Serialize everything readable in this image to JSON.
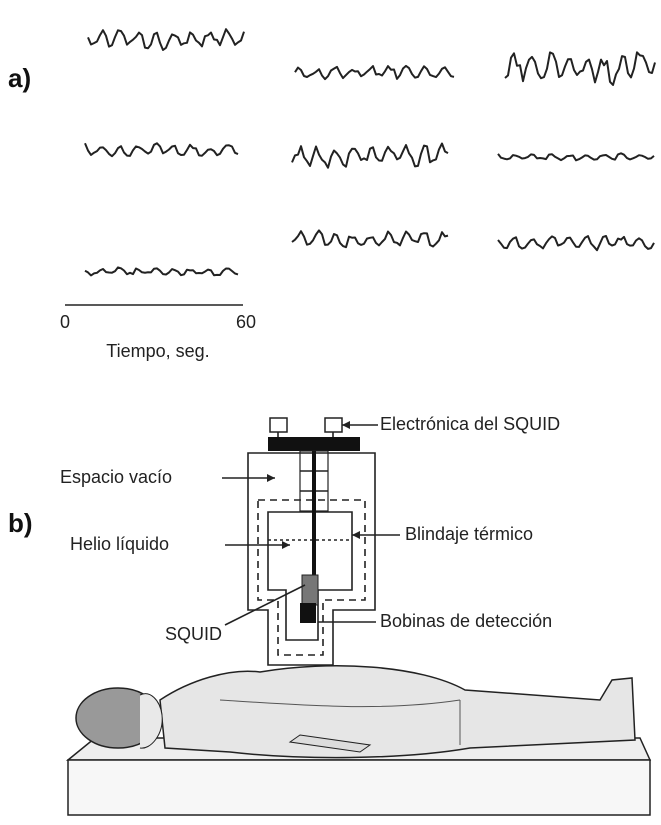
{
  "panel_a": {
    "label": "a)",
    "time_axis": {
      "start": 0,
      "end": 60,
      "label": "Tiempo, seg."
    }
  },
  "panel_b": {
    "label": "b)",
    "labels": {
      "electronics": "Electrónica del SQUID",
      "vacuum": "Espacio vacío",
      "shield": "Blindaje térmico",
      "helium": "Helio líquido",
      "squid": "SQUID",
      "coils": "Bobinas de detección"
    }
  }
}
